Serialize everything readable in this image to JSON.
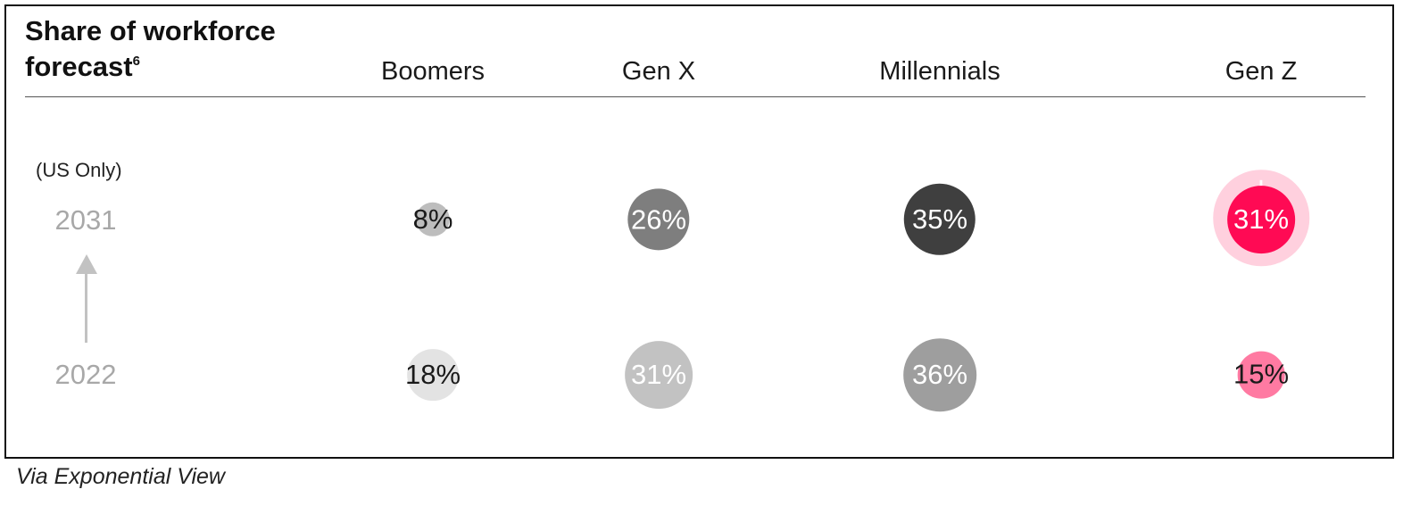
{
  "title": "Share of workforce forecast",
  "title_footnote": "6",
  "source": "Via Exponential View",
  "colors": {
    "boomers_2031": "#bdbdbd",
    "boomers_2022": "#e3e3e3",
    "genx_2031": "#7e7e7e",
    "genx_2022": "#c2c2c2",
    "millennials_2031": "#3f3f3f",
    "millennials_2022": "#9e9e9e",
    "genz_2031": "#ff0a54",
    "genz_2022": "#ff7aa2",
    "genz_halo": "#ffd0de"
  },
  "chart_data": {
    "type": "bubble",
    "title": "Share of workforce forecast",
    "region": "(US Only)",
    "categories": [
      "Boomers",
      "Gen X",
      "Millennials",
      "Gen Z"
    ],
    "rows": [
      "2031",
      "2022"
    ],
    "series": [
      {
        "name": "2031",
        "values": [
          8,
          26,
          35,
          31
        ],
        "labels": [
          "8%",
          "26%",
          "35%",
          "31%"
        ]
      },
      {
        "name": "2022",
        "values": [
          18,
          31,
          36,
          15
        ],
        "labels": [
          "18%",
          "31%",
          "36%",
          "15%"
        ]
      }
    ],
    "highlight": {
      "category": "Gen Z",
      "row": "2031",
      "marker": "+"
    },
    "arrow_direction": "up"
  }
}
